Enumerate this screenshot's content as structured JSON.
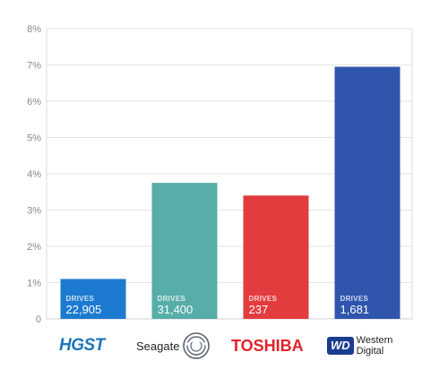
{
  "chart_data": {
    "type": "bar",
    "categories": [
      "HGST",
      "Seagate",
      "TOSHIBA",
      "Western Digital"
    ],
    "values": [
      1.1,
      3.75,
      3.4,
      6.95
    ],
    "colors": [
      "#1c7bd0",
      "#57ada8",
      "#e23c3e",
      "#2f55ad"
    ],
    "drive_label": "DRIVES",
    "drive_counts": [
      "22,905",
      "31,400",
      "237",
      "1,681"
    ],
    "ylim": [
      0,
      8
    ],
    "yticks": [
      0,
      1,
      2,
      3,
      4,
      5,
      6,
      7,
      8
    ],
    "ytick_labels": [
      "0",
      "1%",
      "2%",
      "3%",
      "4%",
      "5%",
      "6%",
      "7%",
      "8%"
    ],
    "grid": true,
    "title": "",
    "xlabel": "",
    "ylabel": ""
  },
  "logos": {
    "hgst": "HGST",
    "seagate": "Seagate",
    "toshiba": "TOSHIBA",
    "wd_badge": "WD",
    "wd_line1": "Western",
    "wd_line2": "Digital"
  }
}
